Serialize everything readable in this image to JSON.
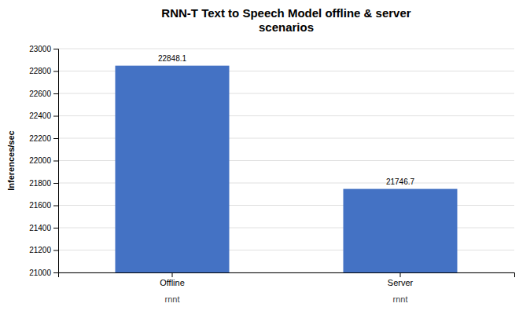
{
  "chart_data": {
    "type": "bar",
    "title": "RNN-T Text to Speech Model offline & server\nscenarios",
    "categories": [
      "Offline",
      "Server"
    ],
    "sublabels": [
      "rnnt",
      "rnnt"
    ],
    "values": [
      22848.1,
      21746.7
    ],
    "color": "#4472C4",
    "ylabel": "Inferences/sec",
    "ylim": [
      21000,
      23000
    ],
    "yticks": [
      21000,
      21200,
      21400,
      21600,
      21800,
      22000,
      22200,
      22400,
      22600,
      22800,
      23000
    ],
    "grid": true,
    "data_labels": true
  }
}
